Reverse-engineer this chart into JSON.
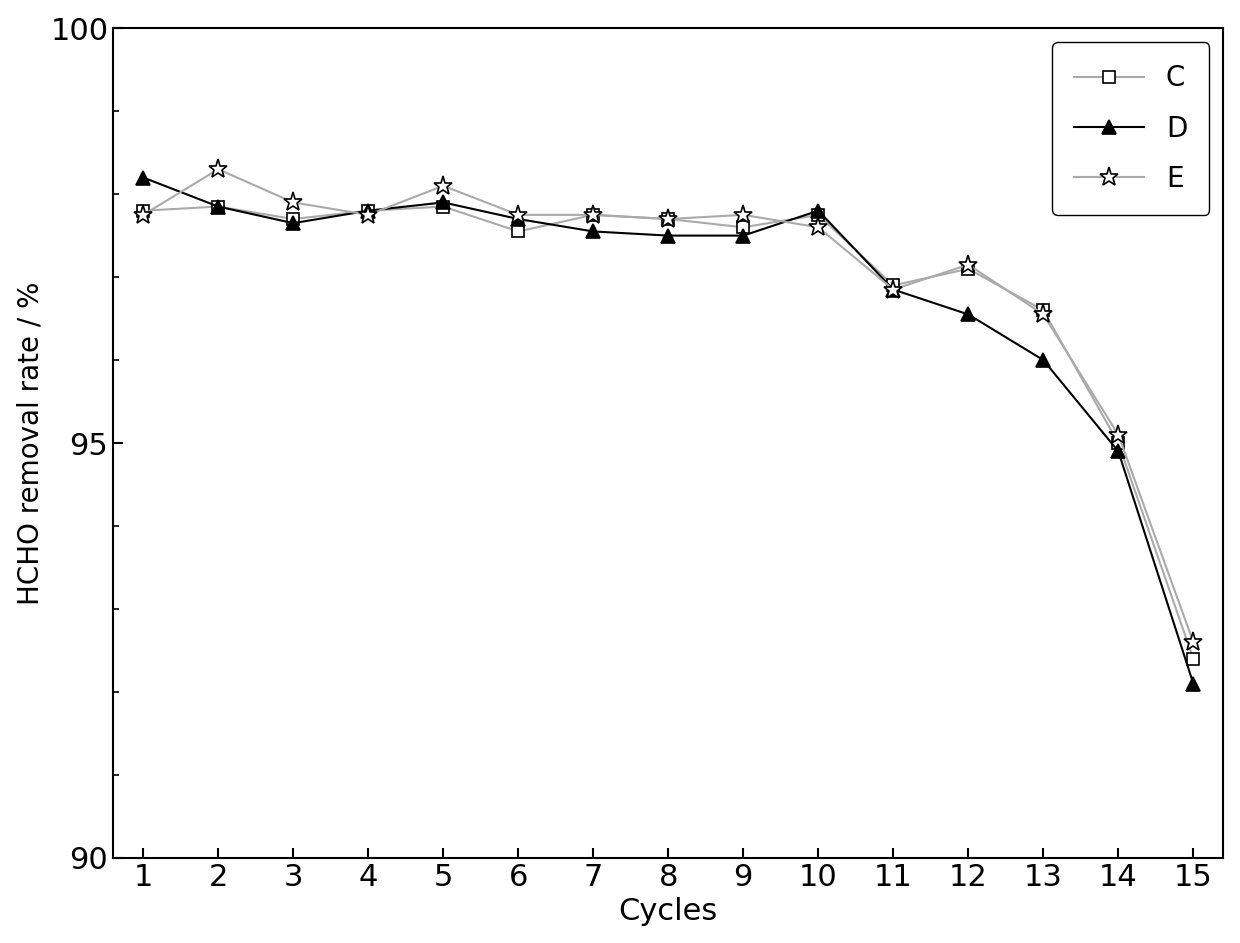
{
  "cycles": [
    1,
    2,
    3,
    4,
    5,
    6,
    7,
    8,
    9,
    10,
    11,
    12,
    13,
    14,
    15
  ],
  "C": [
    97.8,
    97.85,
    97.7,
    97.8,
    97.85,
    97.55,
    97.75,
    97.7,
    97.6,
    97.75,
    96.9,
    97.1,
    96.6,
    95.0,
    92.4
  ],
  "D": [
    98.2,
    97.85,
    97.65,
    97.8,
    97.9,
    97.7,
    97.55,
    97.5,
    97.5,
    97.8,
    96.85,
    96.55,
    96.0,
    94.9,
    92.1
  ],
  "E": [
    97.75,
    98.3,
    97.9,
    97.75,
    98.1,
    97.75,
    97.75,
    97.7,
    97.75,
    97.6,
    96.85,
    97.15,
    96.55,
    95.1,
    92.6
  ],
  "xlabel": "Cycles",
  "ylabel": "HCHO removal rate / %",
  "ylim": [
    90,
    100
  ],
  "xlim": [
    1,
    15
  ],
  "ytick_major": [
    90,
    95,
    100
  ],
  "ytick_minor": [
    91,
    92,
    93,
    94,
    96,
    97,
    98,
    99
  ],
  "xticks": [
    1,
    2,
    3,
    4,
    5,
    6,
    7,
    8,
    9,
    10,
    11,
    12,
    13,
    14,
    15
  ],
  "legend_labels": [
    "C",
    "D",
    "E"
  ],
  "line_color_C": "#aaaaaa",
  "line_color_D": "#000000",
  "line_color_E": "#aaaaaa",
  "marker_C": "s",
  "marker_D": "^",
  "marker_E": "*",
  "markersize_C": 9,
  "markersize_D": 10,
  "markersize_E": 14,
  "linewidth": 1.5,
  "xlabel_fontsize": 22,
  "ylabel_fontsize": 20,
  "tick_fontsize": 22,
  "legend_fontsize": 20
}
